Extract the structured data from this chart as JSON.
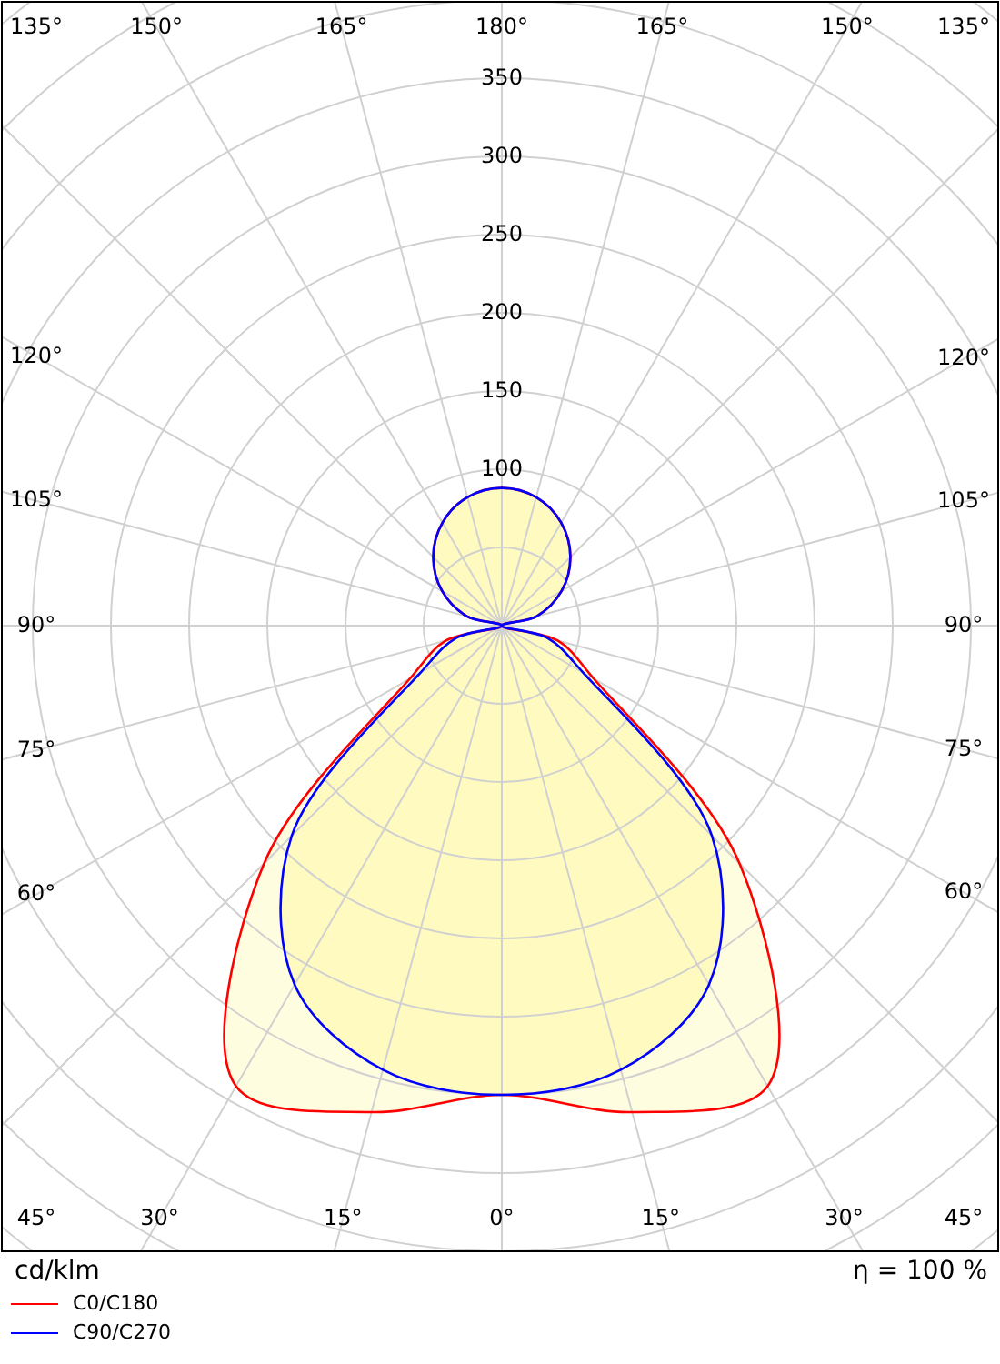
{
  "chart_data": {
    "type": "radar",
    "ylabel": "cd/klm",
    "annotations": [
      "η = 100 %"
    ],
    "categories": [
      "180°",
      "165°",
      "150°",
      "135°",
      "120°",
      "105°",
      "90°",
      "75°",
      "60°",
      "45°",
      "30°",
      "15°",
      "0°",
      "15°",
      "30°",
      "45°",
      "60°",
      "75°",
      "90°",
      "105°",
      "120°",
      "135°",
      "150°",
      "165°"
    ],
    "series": [
      {
        "name": "C0/C180",
        "color": "#ff0000",
        "values": [
          88,
          85,
          76,
          62,
          44,
          23,
          0,
          37,
          68,
          215,
          340,
          322,
          300,
          322,
          340,
          215,
          68,
          37,
          0,
          23,
          44,
          62,
          76,
          85
        ]
      },
      {
        "name": "C90/C270",
        "color": "#0000ff",
        "values": [
          88,
          85,
          76,
          62,
          44,
          23,
          0,
          30,
          60,
          190,
          265,
          294,
          300,
          294,
          265,
          190,
          60,
          30,
          0,
          23,
          44,
          62,
          76,
          85
        ]
      }
    ],
    "ylim": [
      0,
      500
    ],
    "yticks": [
      100,
      150,
      200,
      250,
      300,
      350
    ],
    "grid": true,
    "legend": "bottom"
  }
}
